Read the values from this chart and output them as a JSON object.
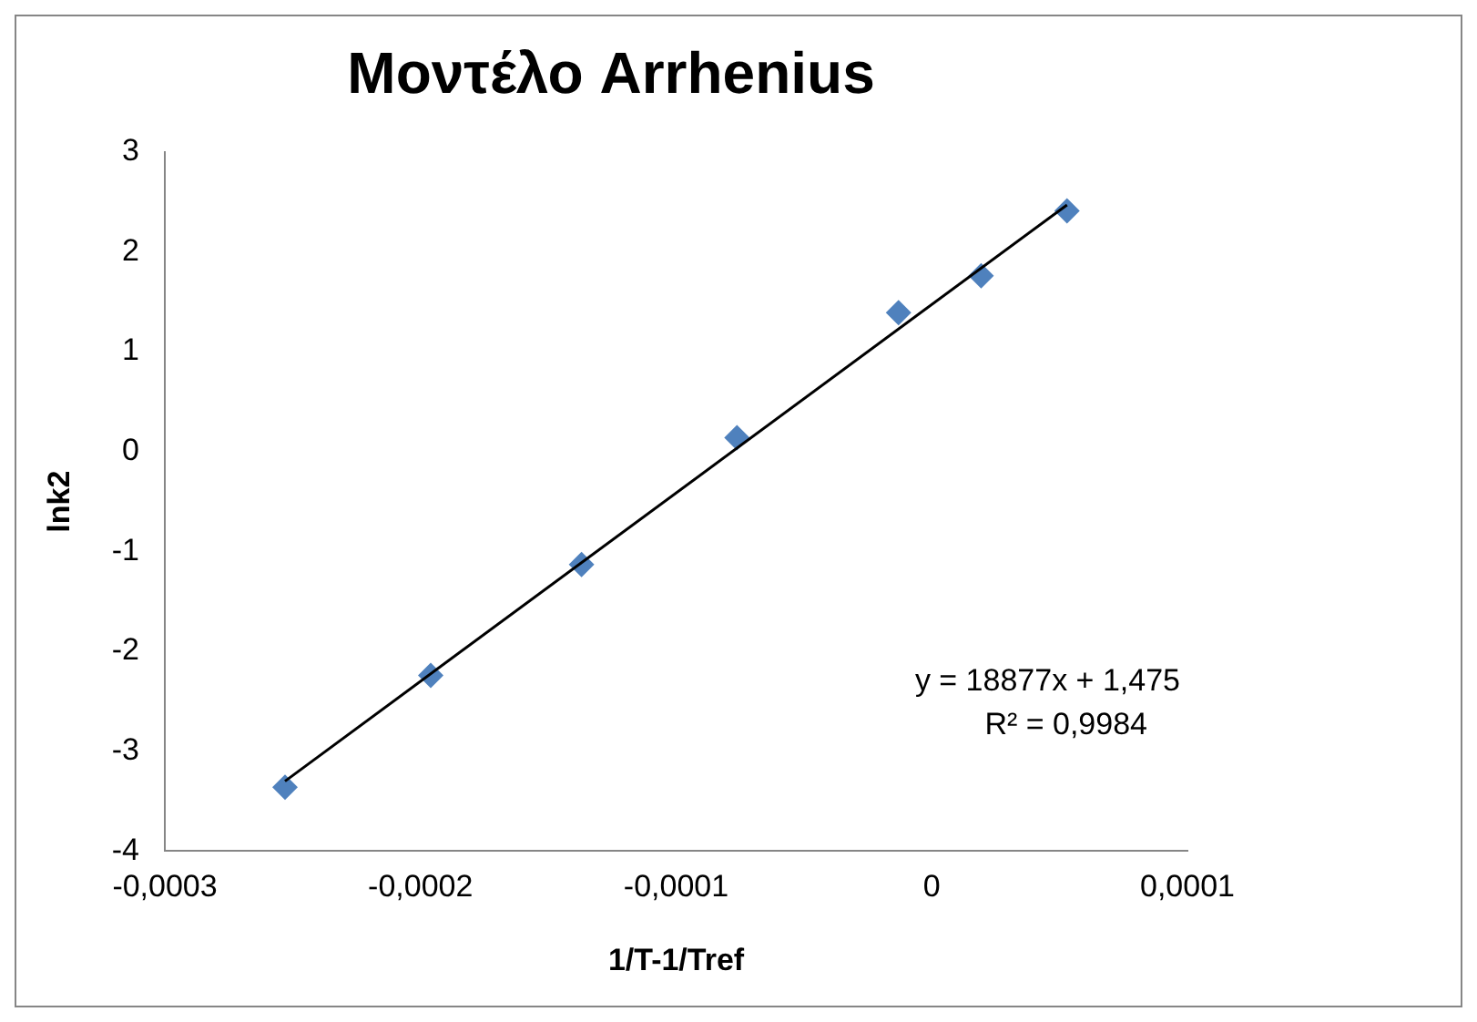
{
  "chart_data": {
    "type": "scatter",
    "title": "Μοντέλο Arrhenius",
    "xlabel": "1/T-1/Tref",
    "ylabel": "lnk2",
    "x": [
      -0.000253,
      -0.000196,
      -0.000137,
      -7.62e-05,
      -1.3e-05,
      1.93e-05,
      5.29e-05
    ],
    "series": [
      {
        "color": "#4f81bd",
        "marker": "diamond",
        "values": [
          -3.36,
          -2.24,
          -1.13,
          0.14,
          1.39,
          1.76,
          2.41
        ]
      },
      {
        "type": "line",
        "color": "#000000",
        "marker": "none",
        "line_style": "solid",
        "x": [
          -0.000253,
          5.29e-05
        ],
        "values": [
          -3.3,
          2.47
        ]
      }
    ],
    "xlim": [
      -0.0003,
      0.0001
    ],
    "xticks": [
      {
        "value": -0.0003,
        "label": "-0,0003"
      },
      {
        "value": -0.0002,
        "label": "-0,0002"
      },
      {
        "value": -0.0001,
        "label": "-0,0001"
      },
      {
        "value": 0,
        "label": "0"
      },
      {
        "value": 0.0001,
        "label": "0,0001"
      }
    ],
    "ylim": [
      -4,
      3
    ],
    "yticks": [
      -4,
      -3,
      -2,
      -1,
      0,
      1,
      2,
      3
    ],
    "grid": false,
    "legend": false,
    "annotations": [
      "y = 18877x + 1,475",
      "R² = 0,9984"
    ]
  }
}
